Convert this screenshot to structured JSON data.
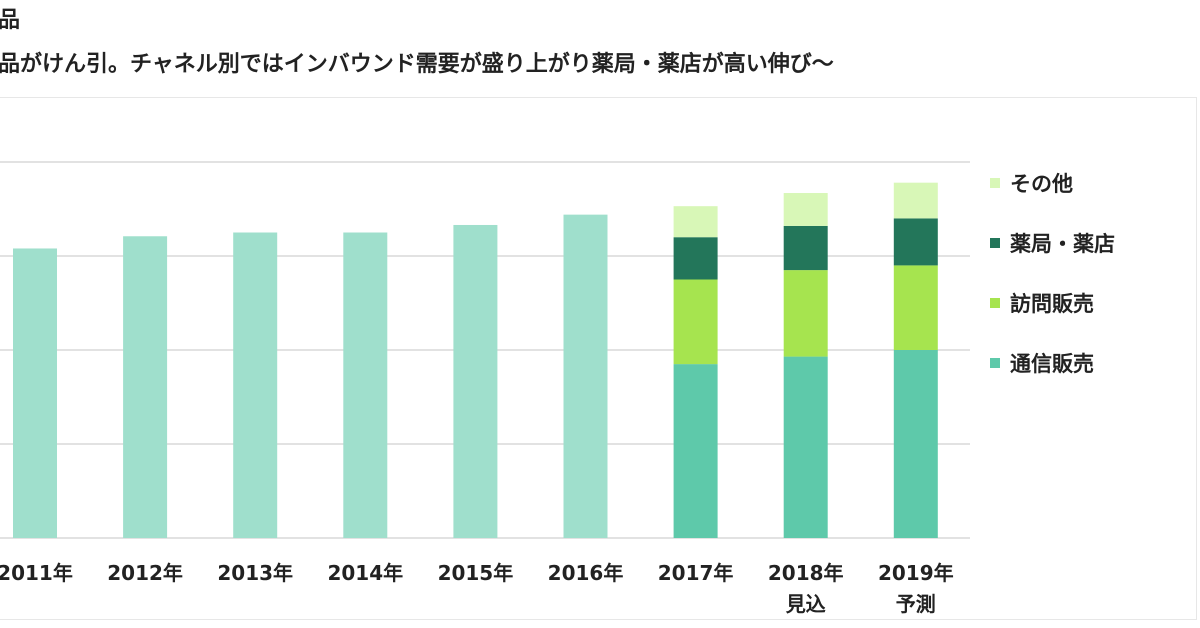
{
  "header": {
    "title": "品",
    "subtitle": "品がけん引。チャネル別ではインバウンド需要が盛り上がり薬局・薬店が高い伸び〜"
  },
  "chart_data": {
    "type": "bar",
    "stacked": true,
    "categories": [
      [
        "2011年"
      ],
      [
        "2012年"
      ],
      [
        "2013年"
      ],
      [
        "2014年"
      ],
      [
        "2015年"
      ],
      [
        "2016年"
      ],
      [
        "2017年"
      ],
      [
        "2018年",
        "見込"
      ],
      [
        "2019年",
        "予測"
      ]
    ],
    "total_series": {
      "color": "#9fdfcc",
      "values": [
        3.08,
        3.21,
        3.25,
        3.25,
        3.33,
        3.44,
        null,
        null,
        null
      ]
    },
    "series": [
      {
        "name": "通信販売",
        "color": "#5ec9aa",
        "values": [
          null,
          null,
          null,
          null,
          null,
          null,
          1.85,
          1.93,
          2.0
        ]
      },
      {
        "name": "訪問販売",
        "color": "#a6e44f",
        "values": [
          null,
          null,
          null,
          null,
          null,
          null,
          0.9,
          0.92,
          0.9
        ]
      },
      {
        "name": "薬局・薬店",
        "color": "#23765a",
        "values": [
          null,
          null,
          null,
          null,
          null,
          null,
          0.45,
          0.47,
          0.5
        ]
      },
      {
        "name": "その他",
        "color": "#d8f7b7",
        "values": [
          null,
          null,
          null,
          null,
          null,
          null,
          0.33,
          0.35,
          0.38
        ]
      }
    ],
    "legend_order": [
      "その他",
      "薬局・薬店",
      "訪問販売",
      "通信販売"
    ],
    "ylim": [
      0,
      4
    ],
    "grid": true,
    "legend_position": "right"
  }
}
